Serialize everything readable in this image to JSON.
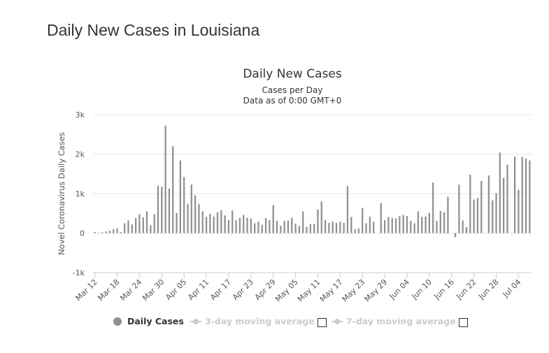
{
  "page_title": "Daily New Cases in Louisiana",
  "chart_data": {
    "type": "bar",
    "title": "Daily New Cases",
    "subtitle_1": "Cases per Day",
    "subtitle_2": "Data as of 0:00 GMT+0",
    "ylabel": "Novel Coronavirus Daily Cases",
    "ylim": [
      -1000,
      3000
    ],
    "yticks": [
      -1000,
      0,
      1000,
      2000,
      3000
    ],
    "ytick_labels": [
      "-1k",
      "0",
      "1k",
      "2k",
      "3k"
    ],
    "xtick_labels": [
      "Mar 12",
      "Mar 18",
      "Mar 24",
      "Mar 30",
      "Apr 05",
      "Apr 11",
      "Apr 17",
      "Apr 23",
      "Apr 29",
      "May 05",
      "May 11",
      "May 17",
      "May 23",
      "May 29",
      "Jun 04",
      "Jun 10",
      "Jun 16",
      "Jun 22",
      "Jun 28",
      "Jul 04"
    ],
    "grid": true,
    "legend_position": "bottom",
    "bar_color": "#8f8f8f",
    "start_label": "Mar 12",
    "series": [
      {
        "name": "Daily Cases",
        "values": [
          30,
          10,
          20,
          40,
          60,
          100,
          120,
          30,
          250,
          320,
          220,
          380,
          480,
          400,
          550,
          200,
          480,
          1200,
          1180,
          2720,
          1130,
          2200,
          510,
          1840,
          1420,
          740,
          1230,
          960,
          740,
          550,
          410,
          490,
          420,
          530,
          580,
          450,
          330,
          570,
          330,
          390,
          460,
          390,
          370,
          250,
          290,
          210,
          380,
          330,
          710,
          310,
          190,
          310,
          320,
          390,
          240,
          180,
          550,
          160,
          230,
          230,
          600,
          800,
          330,
          260,
          290,
          260,
          290,
          260,
          1190,
          410,
          100,
          120,
          640,
          250,
          420,
          290,
          0,
          760,
          330,
          410,
          380,
          370,
          430,
          460,
          430,
          310,
          250,
          550,
          410,
          420,
          510,
          1280,
          310,
          560,
          530,
          920,
          0,
          -100,
          1230,
          320,
          150,
          1480,
          850,
          890,
          1320,
          0,
          1460,
          830,
          1010,
          2040,
          1400,
          1730,
          0,
          1940,
          1100,
          1930,
          1890,
          1840
        ]
      }
    ],
    "legend": [
      {
        "label": "Daily Cases",
        "color": "#8f8f8f",
        "active": true
      },
      {
        "label": "3-day moving average",
        "color": "#cccccc",
        "active": false
      },
      {
        "label": "7-day moving average",
        "color": "#cccccc",
        "active": false
      }
    ]
  }
}
